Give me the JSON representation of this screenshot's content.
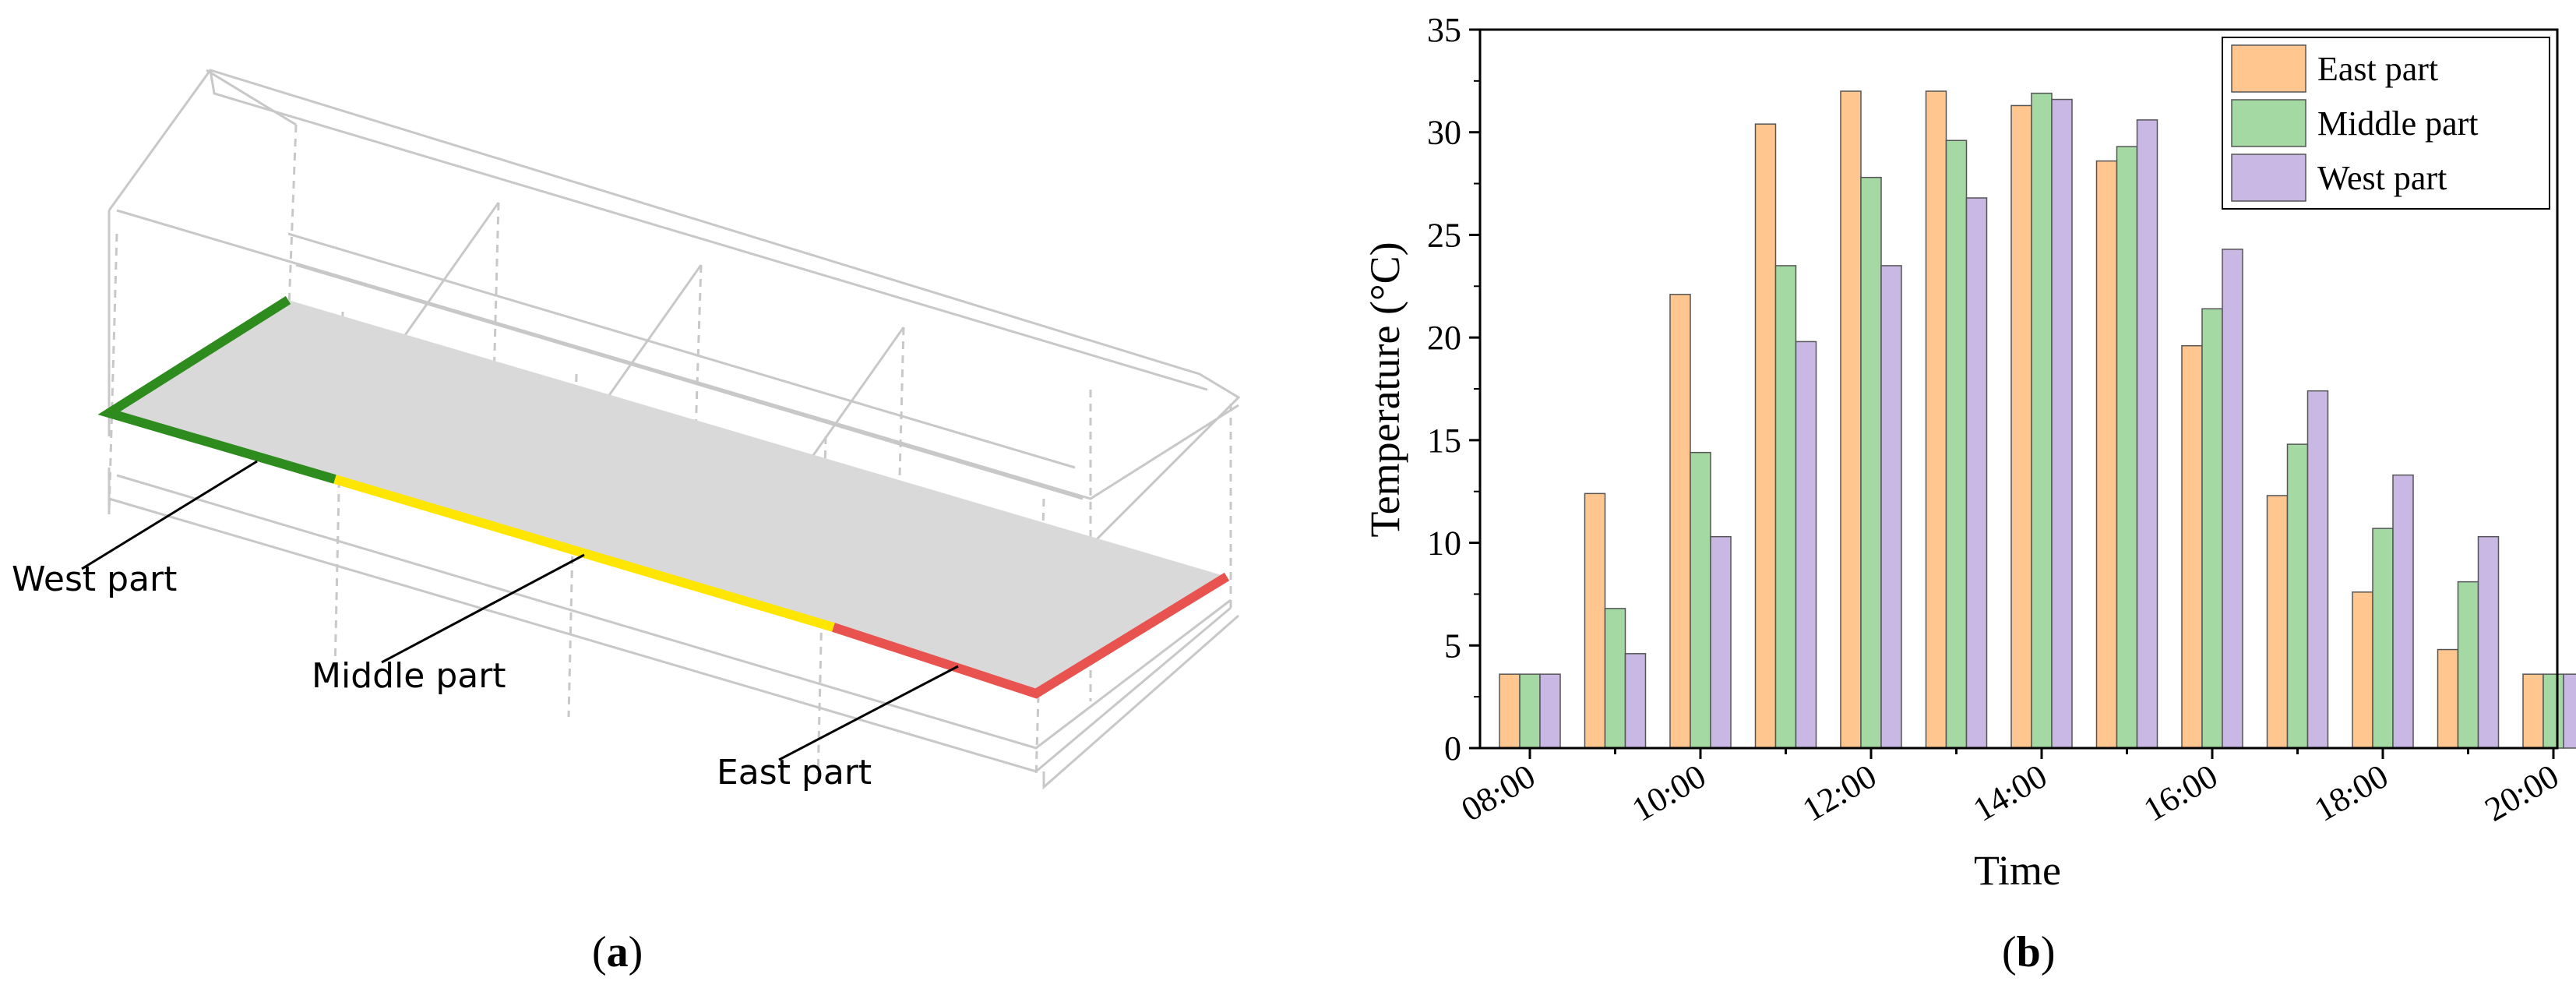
{
  "panel_a": {
    "labels": {
      "west": "West part",
      "middle": "Middle part",
      "east": "East part"
    },
    "caption": "a",
    "colors": {
      "west": "#2e8b1e",
      "middle": "#ffe600",
      "east": "#e8534f",
      "plane": "#d9d9d9",
      "wireframe": "#c8c8c8"
    }
  },
  "panel_b": {
    "caption": "b",
    "colors": [
      "#ffc68f",
      "#a4d9a4",
      "#c8b8e3"
    ]
  },
  "chart_data": {
    "type": "bar",
    "title": "",
    "xlabel": "Time",
    "ylabel": "Temperature (°C)",
    "ylim": [
      0,
      35
    ],
    "yticks": [
      "0",
      "5",
      "10",
      "15",
      "20",
      "25",
      "30",
      "35"
    ],
    "categories": [
      "08:00",
      "09:00",
      "10:00",
      "11:00",
      "12:00",
      "13:00",
      "14:00",
      "15:00",
      "16:00",
      "17:00",
      "18:00",
      "19:00",
      "20:00"
    ],
    "xtick_labels": [
      "08:00",
      "",
      "10:00",
      "",
      "12:00",
      "",
      "14:00",
      "",
      "16:00",
      "",
      "18:00",
      "",
      "20:00"
    ],
    "legend_position": "top-right",
    "grid": false,
    "series": [
      {
        "name": "East part",
        "values": [
          3.6,
          12.4,
          22.1,
          30.4,
          32.0,
          32.0,
          31.3,
          28.6,
          19.6,
          12.3,
          7.6,
          4.8,
          3.6
        ]
      },
      {
        "name": "Middle part",
        "values": [
          3.6,
          6.8,
          14.4,
          23.5,
          27.8,
          29.6,
          31.9,
          29.3,
          21.4,
          14.8,
          10.7,
          8.1,
          3.6
        ]
      },
      {
        "name": "West part",
        "values": [
          3.6,
          4.6,
          10.3,
          19.8,
          23.5,
          26.8,
          31.6,
          30.6,
          24.3,
          17.4,
          13.3,
          10.3,
          3.6
        ]
      }
    ]
  }
}
